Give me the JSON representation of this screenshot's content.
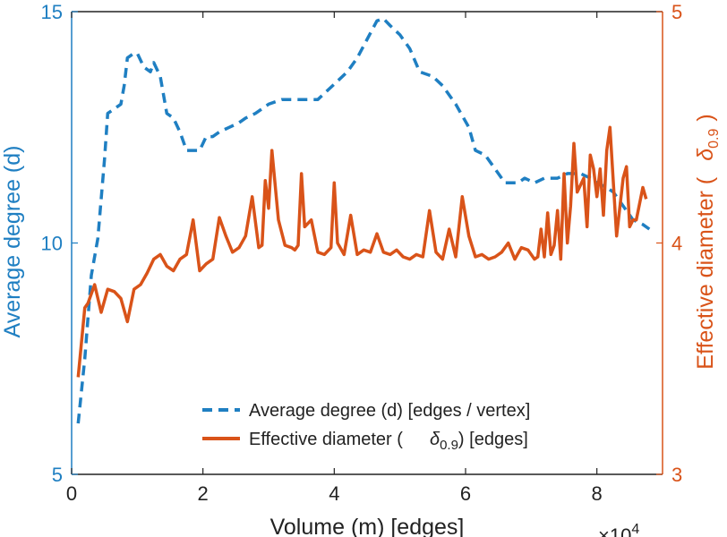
{
  "chart_data": {
    "type": "line",
    "xlabel": "Volume (m) [edges]",
    "x_exponent_base": "×10",
    "x_exponent_power": "4",
    "ylabel_left": "Average degree (d)",
    "ylabel_right_main": "Effective diameter (",
    "ylabel_right_symbol": "δ",
    "ylabel_right_sub": "0.9",
    "ylabel_right_close": ")",
    "xlim": [
      0,
      90000
    ],
    "xticks": [
      0,
      20000,
      40000,
      60000,
      80000
    ],
    "xtick_labels": [
      "0",
      "2",
      "4",
      "6",
      "8"
    ],
    "ylim_left": [
      5,
      15
    ],
    "yticks_left": [
      "5",
      "10",
      "15"
    ],
    "ylim_right": [
      3,
      5
    ],
    "yticks_right": [
      "3",
      "4",
      "5"
    ],
    "grid": false,
    "legend_position": "bottom-center",
    "colors": {
      "left": "#1f7fc2",
      "right": "#d95319",
      "axes": "#222222"
    },
    "series": [
      {
        "name": "Average degree (d) [edges / vertex]",
        "axis": "left",
        "style": "dashed",
        "x": [
          1000,
          2000,
          3000,
          4000,
          5000,
          5500,
          6500,
          7500,
          8000,
          8500,
          9500,
          10000,
          11000,
          12000,
          12500,
          13500,
          14500,
          15500,
          16500,
          17500,
          18500,
          19500,
          20500,
          21500,
          22500,
          24000,
          25500,
          26500,
          28000,
          30000,
          32000,
          33500,
          35500,
          37500,
          39000,
          40500,
          42000,
          43500,
          45000,
          46500,
          47500,
          48500,
          50000,
          51500,
          53000,
          55000,
          56500,
          58500,
          60500,
          61500,
          63000,
          64500,
          66000,
          68000,
          69000,
          70500,
          72000,
          74000,
          75500,
          77500,
          79000,
          80000,
          81500,
          82500,
          84000,
          85500,
          87000,
          88000
        ],
        "values": [
          6.1,
          7.5,
          9.3,
          10.1,
          11.8,
          12.8,
          12.9,
          13.0,
          13.4,
          14.0,
          14.1,
          14.1,
          13.8,
          13.7,
          13.9,
          13.6,
          12.8,
          12.7,
          12.4,
          12.0,
          12.0,
          12.0,
          12.3,
          12.3,
          12.4,
          12.5,
          12.6,
          12.7,
          12.8,
          13.0,
          13.1,
          13.1,
          13.1,
          13.1,
          13.3,
          13.5,
          13.7,
          14.0,
          14.4,
          14.8,
          14.85,
          14.7,
          14.5,
          14.2,
          13.7,
          13.6,
          13.4,
          13.0,
          12.5,
          12.0,
          11.9,
          11.6,
          11.3,
          11.3,
          11.4,
          11.3,
          11.4,
          11.4,
          11.5,
          11.5,
          11.4,
          11.3,
          11.2,
          11.1,
          10.8,
          10.5,
          10.4,
          10.3
        ]
      },
      {
        "name": "Effective diameter ( δ0.9) [edges]",
        "axis": "right",
        "style": "solid",
        "x": [
          1000,
          2000,
          2500,
          3500,
          4500,
          5500,
          6500,
          7500,
          8500,
          9500,
          10500,
          11500,
          12500,
          13500,
          14500,
          15500,
          16500,
          17500,
          18500,
          19500,
          20500,
          21500,
          22500,
          23500,
          24500,
          25500,
          26500,
          27500,
          28500,
          29000,
          29500,
          30000,
          30500,
          31500,
          32500,
          33500,
          34000,
          34500,
          35000,
          35500,
          36500,
          37500,
          38500,
          39500,
          40000,
          40500,
          41500,
          42500,
          43500,
          44500,
          45500,
          46500,
          47500,
          48500,
          49500,
          50500,
          51500,
          52500,
          53500,
          54500,
          55500,
          56500,
          57500,
          58500,
          59500,
          60500,
          61500,
          62500,
          63500,
          64500,
          65500,
          66500,
          67500,
          68500,
          69500,
          70500,
          71000,
          71500,
          72000,
          72500,
          73000,
          73500,
          74000,
          74500,
          75000,
          75500,
          76000,
          76500,
          77000,
          78000,
          78500,
          79000,
          79500,
          80000,
          80500,
          81000,
          81500,
          82000,
          83000,
          84000,
          84500,
          85000,
          85500,
          86000,
          87000,
          87500
        ],
        "values": [
          3.42,
          3.72,
          3.74,
          3.82,
          3.7,
          3.8,
          3.79,
          3.76,
          3.66,
          3.8,
          3.82,
          3.87,
          3.93,
          3.95,
          3.9,
          3.88,
          3.93,
          3.95,
          4.1,
          3.88,
          3.91,
          3.93,
          4.11,
          4.03,
          3.96,
          3.98,
          4.03,
          4.2,
          3.98,
          3.99,
          4.27,
          4.15,
          4.4,
          4.1,
          3.99,
          3.98,
          3.97,
          3.99,
          4.3,
          4.07,
          4.1,
          3.96,
          3.95,
          3.98,
          4.26,
          4.0,
          3.95,
          4.12,
          3.95,
          3.97,
          3.96,
          4.04,
          3.96,
          3.95,
          3.97,
          3.94,
          3.93,
          3.95,
          3.94,
          4.14,
          3.96,
          3.93,
          4.06,
          3.94,
          4.2,
          4.03,
          3.94,
          3.95,
          3.93,
          3.94,
          3.96,
          4.0,
          3.93,
          3.98,
          3.97,
          3.93,
          3.94,
          4.06,
          3.94,
          4.13,
          3.95,
          3.99,
          4.14,
          3.93,
          4.3,
          4.0,
          4.16,
          4.43,
          4.22,
          4.28,
          4.07,
          4.38,
          4.32,
          4.2,
          4.32,
          4.12,
          4.4,
          4.5,
          4.03,
          4.28,
          4.33,
          4.07,
          4.1,
          4.1,
          4.24,
          4.19
        ],
        "values_note": "right-axis units"
      }
    ]
  }
}
